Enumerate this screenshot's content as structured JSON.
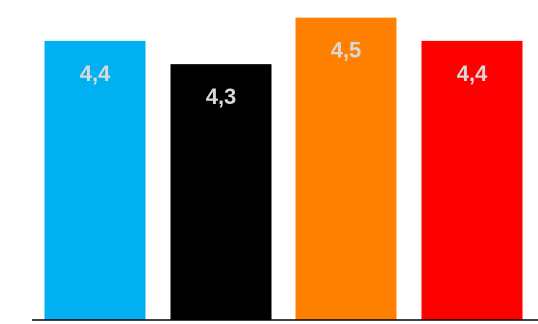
{
  "chart_data": {
    "type": "bar",
    "categories": [
      "",
      "",
      "",
      ""
    ],
    "values": [
      4.4,
      4.3,
      4.5,
      4.4
    ],
    "value_labels": [
      "4,4",
      "4,3",
      "4,5",
      "4,4"
    ],
    "ylim": [
      3.2,
      4.55
    ],
    "grid": false,
    "legend": "none",
    "colors": [
      "#00B0F0",
      "#000000",
      "#FF8000",
      "#FF0000"
    ],
    "label_colors": [
      "#D9D9D9",
      "#D9D9D9",
      "#D9D9D9",
      "#D9D9D9"
    ],
    "axis_color": "#000000"
  }
}
